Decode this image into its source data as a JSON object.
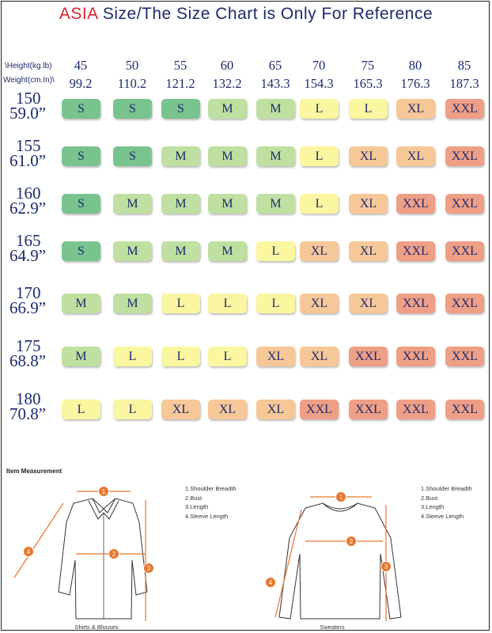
{
  "title": {
    "accent": "ASIA",
    "rest": " Size/The Size Chart is Only For Reference"
  },
  "table": {
    "height_label": "\\Height(kg.lb)",
    "weight_label": "Weight(cm.In)\\",
    "weights_kg": [
      "45",
      "50",
      "55",
      "60",
      "65",
      "70",
      "75",
      "80",
      "85"
    ],
    "weights_lb": [
      "99.2",
      "110.2",
      "121.2",
      "132.2",
      "143.3",
      "154.3",
      "165.3",
      "176.3",
      "187.3"
    ],
    "rows": [
      {
        "cm": "150",
        "in": "59.0”",
        "sizes": [
          "S",
          "S",
          "S",
          "M",
          "M",
          "L",
          "L",
          "XL",
          "XXL"
        ]
      },
      {
        "cm": "155",
        "in": "61.0”",
        "sizes": [
          "S",
          "S",
          "M",
          "M",
          "M",
          "L",
          "XL",
          "XL",
          "XXL"
        ]
      },
      {
        "cm": "160",
        "in": "62.9”",
        "sizes": [
          "S",
          "M",
          "M",
          "M",
          "M",
          "L",
          "XL",
          "XXL",
          "XXL"
        ]
      },
      {
        "cm": "165",
        "in": "64.9”",
        "sizes": [
          "S",
          "M",
          "M",
          "M",
          "L",
          "XL",
          "XL",
          "XXL",
          "XXL"
        ]
      },
      {
        "cm": "170",
        "in": "66.9”",
        "sizes": [
          "M",
          "M",
          "L",
          "L",
          "L",
          "XL",
          "XL",
          "XXL",
          "XXL"
        ]
      },
      {
        "cm": "175",
        "in": "68.8”",
        "sizes": [
          "M",
          "L",
          "L",
          "L",
          "XL",
          "XL",
          "XXL",
          "XXL",
          "XXL"
        ]
      },
      {
        "cm": "180",
        "in": "70.8”",
        "sizes": [
          "L",
          "L",
          "XL",
          "XL",
          "XL",
          "XXL",
          "XXL",
          "XXL",
          "XXL"
        ]
      }
    ]
  },
  "size_colors": {
    "S": "#79c48e",
    "M": "#bfe0a0",
    "L": "#fbf6a0",
    "XL": "#f6c898",
    "XXL": "#ef9f86"
  },
  "measurement": {
    "heading": "Item Measurement",
    "legend": [
      "1.Shoulder Breadth",
      "2.Bust",
      "3.Length",
      "4.Sleeve Length"
    ],
    "shirt_caption": "Shirts & Blouses",
    "sweater_caption": "Sweaters",
    "markers": [
      "1",
      "2",
      "3",
      "4"
    ],
    "accent_color": "#e8762d"
  }
}
